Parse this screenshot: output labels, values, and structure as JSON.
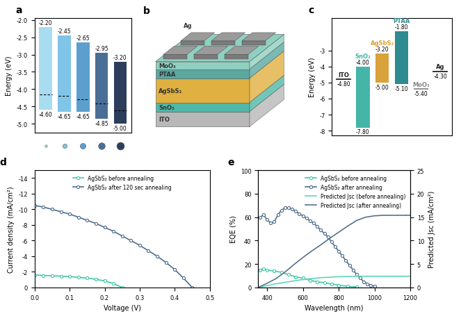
{
  "chart_data": [
    {
      "type": "floating_bar",
      "panel": "a",
      "ylabel": "Energy (eV)",
      "categories": [
        null,
        null,
        null,
        null,
        null
      ],
      "tops": [
        -2.2,
        -2.45,
        -2.65,
        -2.95,
        -3.2
      ],
      "top_labels": [
        "-2.20",
        "-2.45",
        "-2.65",
        "-2.95",
        "-3.20"
      ],
      "bottoms": [
        -4.6,
        -4.65,
        -4.65,
        -4.85,
        -5.0
      ],
      "bottom_labels": [
        "-4.60",
        "-4.65",
        "-4.65",
        "-4.85",
        "-5.00"
      ],
      "fermi": [
        -4.15,
        -4.2,
        -4.3,
        -4.42,
        -4.62
      ],
      "colors": [
        "#a8dcf0",
        "#80c4e8",
        "#5c9fcf",
        "#4a6f96",
        "#2c3e5c"
      ],
      "ylim": [
        -5.25,
        -1.95
      ],
      "yticks": [
        -5.0,
        -4.5,
        -4.0,
        -3.5,
        -3.0,
        -2.5,
        -2.0
      ],
      "tick_labels": "y"
    },
    {
      "type": "band_diagram",
      "panel": "c",
      "ylabel": "Energy (eV)",
      "ylim": [
        -8.3,
        -1.0
      ],
      "yticks": [
        -8,
        -7,
        -6,
        -5,
        -4,
        -3
      ],
      "tick_labels": "y",
      "series": [
        {
          "name": "ITO",
          "type": "line",
          "color": "#222222",
          "values": [
            -4.8
          ],
          "value_labels": [
            "-4.80"
          ]
        },
        {
          "name": "SnO₂",
          "type": "bar",
          "color": "#45b5a8",
          "values": [
            -7.8,
            -4.0
          ],
          "value_labels": [
            "-7.80",
            "-4.00"
          ]
        },
        {
          "name": "AgSbS₂",
          "type": "bar",
          "color": "#d9a23a",
          "values": [
            -5.0,
            -3.2
          ],
          "value_labels": [
            "-5.00",
            "-3.20"
          ]
        },
        {
          "name": "PTAA",
          "type": "bar",
          "color": "#2e8b8f",
          "values": [
            -5.1,
            -1.8
          ],
          "value_labels": [
            "-5.10",
            "-1.80"
          ]
        },
        {
          "name": "MoO₃",
          "type": "line",
          "color": "#888888",
          "values": [
            -5.4
          ],
          "value_labels": [
            "-5.40"
          ]
        },
        {
          "name": "Ag",
          "type": "line",
          "color": "#222222",
          "values": [
            -4.3
          ],
          "value_labels": [
            "-4.30"
          ]
        }
      ]
    },
    {
      "type": "line",
      "panel": "d",
      "xlabel": "Voltage (V)",
      "ylabel": "Current density (mA/cm²)",
      "xlim": [
        0.0,
        0.5
      ],
      "xticks": [
        0.0,
        0.1,
        0.2,
        0.3,
        0.4,
        0.5
      ],
      "ylim": [
        0,
        -15
      ],
      "yticks": [
        0,
        -2,
        -4,
        -6,
        -8,
        -10,
        -12,
        -14
      ],
      "legend": "upper center",
      "series": [
        {
          "name": "AgSbS₂ before annealing",
          "color": "#3ec9a7",
          "marker": "circle",
          "x": [
            0.0,
            0.025,
            0.05,
            0.075,
            0.1,
            0.125,
            0.15,
            0.175,
            0.2,
            0.225,
            0.25
          ],
          "values": [
            -1.6,
            -1.55,
            -1.5,
            -1.45,
            -1.4,
            -1.3,
            -1.2,
            -1.05,
            -0.85,
            -0.5,
            0.0
          ]
        },
        {
          "name": "AgSbS₂ after 120 sec annealing",
          "color": "#4e6d8c",
          "marker": "circle",
          "x": [
            0.0,
            0.025,
            0.05,
            0.075,
            0.1,
            0.125,
            0.15,
            0.175,
            0.2,
            0.225,
            0.25,
            0.275,
            0.3,
            0.325,
            0.35,
            0.375,
            0.4,
            0.425,
            0.45
          ],
          "values": [
            -10.5,
            -10.3,
            -10.0,
            -9.7,
            -9.4,
            -9.0,
            -8.6,
            -8.2,
            -7.7,
            -7.2,
            -6.6,
            -6.0,
            -5.4,
            -4.7,
            -4.0,
            -3.2,
            -2.3,
            -1.2,
            0.0
          ]
        }
      ]
    },
    {
      "type": "line",
      "panel": "e",
      "xlabel": "Wavelength (nm)",
      "ylabel": "EQE (%)",
      "y2label": "Predicted Jsc (mA/cm²)",
      "xlim": [
        350,
        1200
      ],
      "xticks": [
        400,
        600,
        800,
        1000,
        1200
      ],
      "ylim": [
        0,
        100
      ],
      "yticks": [
        0,
        20,
        40,
        60,
        80,
        100
      ],
      "y2lim": [
        0,
        25
      ],
      "y2ticks": [
        0,
        5,
        10,
        15,
        20,
        25
      ],
      "legend": "upper right",
      "series": [
        {
          "name": "AgSbS₂ before annealing",
          "color": "#3ec9a7",
          "marker": "circle",
          "x": [
            360,
            380,
            400,
            440,
            480,
            520,
            560,
            600,
            640,
            680,
            720,
            760,
            800,
            850,
            900
          ],
          "values": [
            15,
            16,
            15,
            14,
            13,
            11,
            9,
            8,
            6,
            5,
            4,
            3,
            2,
            1,
            0.5
          ]
        },
        {
          "name": "AgSbS₂ after annealing",
          "color": "#4e6d8c",
          "marker": "circle",
          "x": [
            360,
            380,
            400,
            420,
            440,
            460,
            480,
            500,
            520,
            540,
            560,
            580,
            600,
            620,
            640,
            660,
            680,
            700,
            720,
            740,
            760,
            780,
            800,
            820,
            840,
            860,
            880,
            900,
            920,
            940,
            960,
            980,
            1000
          ],
          "values": [
            60,
            62,
            58,
            55,
            56,
            62,
            66,
            68,
            68,
            67,
            65,
            63,
            61,
            59,
            57,
            55,
            52,
            49,
            46,
            43,
            39,
            35,
            31,
            27,
            23,
            19,
            15,
            11,
            8,
            5,
            3,
            2,
            1
          ]
        },
        {
          "name": "Predicted Jsc (before annealing)",
          "color": "#5fd6b8",
          "marker": "none",
          "axis": "y2",
          "x": [
            350,
            400,
            450,
            500,
            550,
            600,
            650,
            700,
            750,
            800,
            900,
            1000,
            1200
          ],
          "values": [
            0,
            0.4,
            0.8,
            1.1,
            1.4,
            1.7,
            1.9,
            2.1,
            2.2,
            2.3,
            2.4,
            2.4,
            2.4
          ]
        },
        {
          "name": "Predicted Jsc (after annealing)",
          "color": "#56728f",
          "marker": "none",
          "axis": "y2",
          "x": [
            350,
            400,
            450,
            500,
            550,
            600,
            650,
            700,
            750,
            800,
            850,
            900,
            950,
            1000,
            1050,
            1100,
            1200
          ],
          "values": [
            0,
            0.9,
            1.9,
            3.3,
            4.9,
            6.4,
            7.8,
            9.1,
            10.5,
            11.8,
            13.1,
            14.3,
            15.0,
            15.3,
            15.4,
            15.4,
            15.4
          ]
        }
      ]
    }
  ],
  "diagram": {
    "panel": "b",
    "layers": [
      "Ag",
      "MoO₃",
      "PTAA",
      "AgSbS₂",
      "SnO₂",
      "ITO"
    ]
  }
}
